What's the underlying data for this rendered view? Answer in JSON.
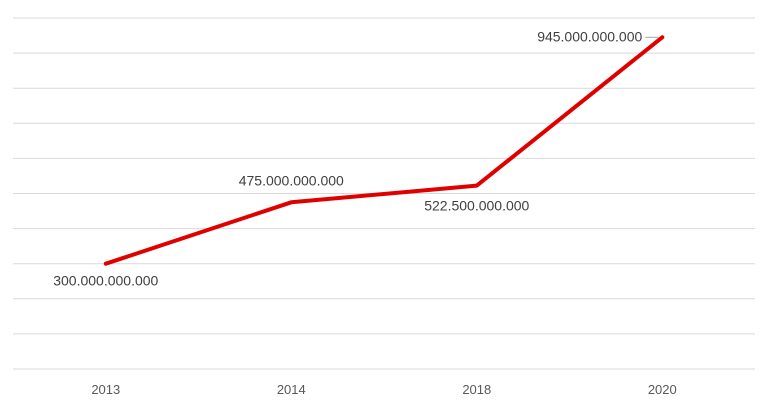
{
  "chart_data": {
    "type": "line",
    "categories": [
      "2013",
      "2014",
      "2018",
      "2020"
    ],
    "series": [
      {
        "values": [
          300000000000,
          475000000000,
          522500000000,
          945000000000
        ],
        "data_labels": [
          "300.000.000.000",
          "475.000.000.000",
          "522.500.000.000",
          "945.000.000.000"
        ],
        "color": "#e00000"
      }
    ],
    "ylim": [
      0,
      1000000000000
    ],
    "grid": true,
    "legend": "none",
    "title": "",
    "xlabel": "",
    "ylabel": ""
  }
}
